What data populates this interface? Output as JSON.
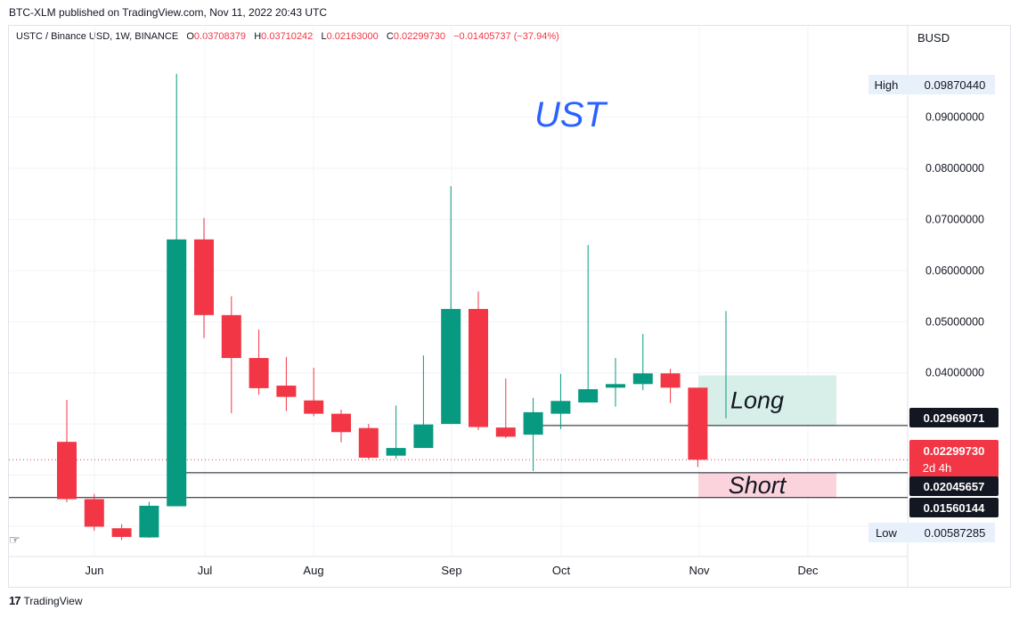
{
  "header": {
    "published": "BTC-XLM published on TradingView.com, Nov 11, 2022 20:43 UTC",
    "symbol": "USTC / Binance USD, 1W, BINANCE",
    "o_label": "O",
    "o_value": "0.03708379",
    "h_label": "H",
    "h_value": "0.03710242",
    "l_label": "L",
    "l_value": "0.02163000",
    "c_label": "C",
    "c_value": "0.02299730",
    "change": "−0.01405737 (−37.94%)",
    "currency": "BUSD"
  },
  "footer": {
    "brand": "TradingView",
    "logo": "17"
  },
  "colors": {
    "up": "#089981",
    "down": "#f23645",
    "grid": "#f0f3fa",
    "text": "#131722",
    "long_zone": "#d7eee9",
    "short_zone": "#fbd3dd",
    "annotation": "#2962ff"
  },
  "chart_data": {
    "type": "candlestick",
    "title": "UST",
    "interval": "1W",
    "x_ticks": [
      "Jun",
      "Jul",
      "Aug",
      "Sep",
      "Oct",
      "Nov",
      "Dec"
    ],
    "y_ticks": [
      "0.09000000",
      "0.08000000",
      "0.07000000",
      "0.06000000",
      "0.05000000",
      "0.04000000"
    ],
    "ylim": [
      0.0065,
      0.099
    ],
    "grid": true,
    "candles": [
      {
        "o": 0.0265,
        "h": 0.0347,
        "l": 0.0147,
        "c": 0.0153
      },
      {
        "o": 0.0153,
        "h": 0.0163,
        "l": 0.0091,
        "c": 0.0099
      },
      {
        "o": 0.0096,
        "h": 0.0104,
        "l": 0.0073,
        "c": 0.0079
      },
      {
        "o": 0.0078,
        "h": 0.0148,
        "l": 0.0077,
        "c": 0.014
      },
      {
        "o": 0.0139,
        "h": 0.0985,
        "l": 0.0139,
        "c": 0.0661
      },
      {
        "o": 0.0661,
        "h": 0.0703,
        "l": 0.0468,
        "c": 0.0513
      },
      {
        "o": 0.0513,
        "h": 0.055,
        "l": 0.0321,
        "c": 0.0429
      },
      {
        "o": 0.0429,
        "h": 0.0485,
        "l": 0.0357,
        "c": 0.037
      },
      {
        "o": 0.0375,
        "h": 0.0431,
        "l": 0.0325,
        "c": 0.0353
      },
      {
        "o": 0.0346,
        "h": 0.041,
        "l": 0.0315,
        "c": 0.032
      },
      {
        "o": 0.032,
        "h": 0.0328,
        "l": 0.0264,
        "c": 0.0284
      },
      {
        "o": 0.0292,
        "h": 0.03,
        "l": 0.0231,
        "c": 0.0234
      },
      {
        "o": 0.0238,
        "h": 0.0336,
        "l": 0.0232,
        "c": 0.0253
      },
      {
        "o": 0.0253,
        "h": 0.0434,
        "l": 0.0253,
        "c": 0.0299
      },
      {
        "o": 0.03,
        "h": 0.0765,
        "l": 0.03,
        "c": 0.0525
      },
      {
        "o": 0.0525,
        "h": 0.0559,
        "l": 0.0288,
        "c": 0.0294
      },
      {
        "o": 0.0293,
        "h": 0.0389,
        "l": 0.0272,
        "c": 0.0275
      },
      {
        "o": 0.0279,
        "h": 0.0351,
        "l": 0.0208,
        "c": 0.0323
      },
      {
        "o": 0.032,
        "h": 0.0398,
        "l": 0.029,
        "c": 0.0345
      },
      {
        "o": 0.0342,
        "h": 0.065,
        "l": 0.0343,
        "c": 0.0368
      },
      {
        "o": 0.0371,
        "h": 0.0429,
        "l": 0.0334,
        "c": 0.0378
      },
      {
        "o": 0.0378,
        "h": 0.0476,
        "l": 0.0366,
        "c": 0.0399
      },
      {
        "o": 0.0399,
        "h": 0.0408,
        "l": 0.0341,
        "c": 0.0371
      },
      {
        "o": 0.0371,
        "h": 0.0371,
        "l": 0.0216,
        "c": 0.023
      }
    ],
    "projection_line": {
      "from": 0.0311,
      "to": 0.0521
    },
    "price_labels": [
      {
        "text": "0.02969071",
        "value": 0.02969071,
        "style": "dark",
        "line": true
      },
      {
        "text": "0.02299730",
        "sub": "2d 4h",
        "value": 0.0229973,
        "style": "red",
        "line": "dotted"
      },
      {
        "text": "0.02045657",
        "value": 0.02045657,
        "style": "dark",
        "line": true
      },
      {
        "text": "0.01560144",
        "value": 0.01560144,
        "style": "dark",
        "line": true
      }
    ],
    "high": {
      "label": "High",
      "value": "0.09870440"
    },
    "low": {
      "label": "Low",
      "value": "0.00587285"
    },
    "zones": [
      {
        "label": "Long",
        "top": 0.0395,
        "bottom": 0.0297
      },
      {
        "label": "Short",
        "top": 0.0204,
        "bottom": 0.0156
      }
    ]
  }
}
